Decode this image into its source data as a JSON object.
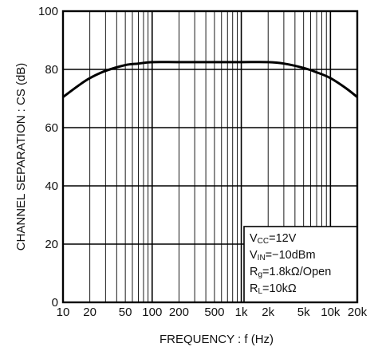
{
  "chart_data": {
    "type": "line",
    "xlabel": "FREQUENCY : f (Hz)",
    "ylabel": "CHANNEL SEPARATION : CS (dB)",
    "x_scale": "log",
    "xlim": [
      10,
      20000
    ],
    "ylim": [
      0,
      100
    ],
    "grid": true,
    "x_ticks": [
      {
        "value": 10,
        "label": "10"
      },
      {
        "value": 20,
        "label": "20"
      },
      {
        "value": 50,
        "label": "50"
      },
      {
        "value": 100,
        "label": "100"
      },
      {
        "value": 200,
        "label": "200"
      },
      {
        "value": 500,
        "label": "500"
      },
      {
        "value": 1000,
        "label": "1k"
      },
      {
        "value": 2000,
        "label": "2k"
      },
      {
        "value": 5000,
        "label": "5k"
      },
      {
        "value": 10000,
        "label": "10k"
      },
      {
        "value": 20000,
        "label": "20k"
      }
    ],
    "y_ticks": [
      {
        "value": 0,
        "label": "0"
      },
      {
        "value": 20,
        "label": "20"
      },
      {
        "value": 40,
        "label": "40"
      },
      {
        "value": 60,
        "label": "60"
      },
      {
        "value": 80,
        "label": "80"
      },
      {
        "value": 100,
        "label": "100"
      }
    ],
    "series": [
      {
        "x": [
          10,
          15,
          20,
          30,
          50,
          70,
          100,
          200,
          500,
          1000,
          2000,
          3000,
          5000,
          7000,
          10000,
          15000,
          20000
        ],
        "y": [
          70.5,
          74.5,
          77,
          79.5,
          81.5,
          82,
          82.5,
          82.5,
          82.5,
          82.5,
          82.5,
          82,
          80.5,
          79,
          77,
          73.5,
          70.5
        ]
      }
    ],
    "annotation_lines": [
      [
        "V",
        "CC",
        "=12V"
      ],
      [
        "V",
        "IN",
        "=−10dBm"
      ],
      [
        "R",
        "g",
        "=1.8kΩ/Open"
      ],
      [
        "R",
        "L",
        "=10kΩ"
      ]
    ],
    "annotation_position": "bottom-right"
  }
}
